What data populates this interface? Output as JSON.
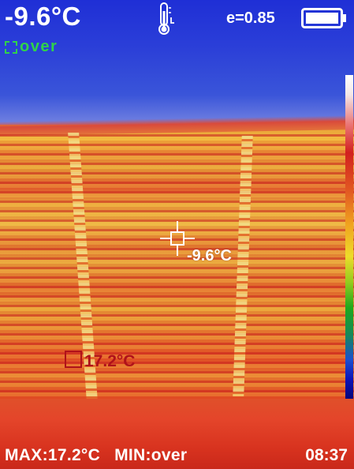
{
  "hud": {
    "center_temperature": "-9.6°C",
    "alarm_status": "over",
    "emissivity": "e=0.85",
    "battery_icon": "battery-full-icon",
    "thermometer_icon": "thermometer-icon"
  },
  "markers": {
    "crosshair_temperature": "-9.6°C",
    "max_spot_temperature": "17.2°C"
  },
  "footer": {
    "max_label": "MAX:17.2°C",
    "min_label": "MIN:over",
    "time": "08:37"
  },
  "colors": {
    "hud_text": "#ffffff",
    "alarm_green": "#2fd34a",
    "max_marker_red": "#b0121a"
  }
}
